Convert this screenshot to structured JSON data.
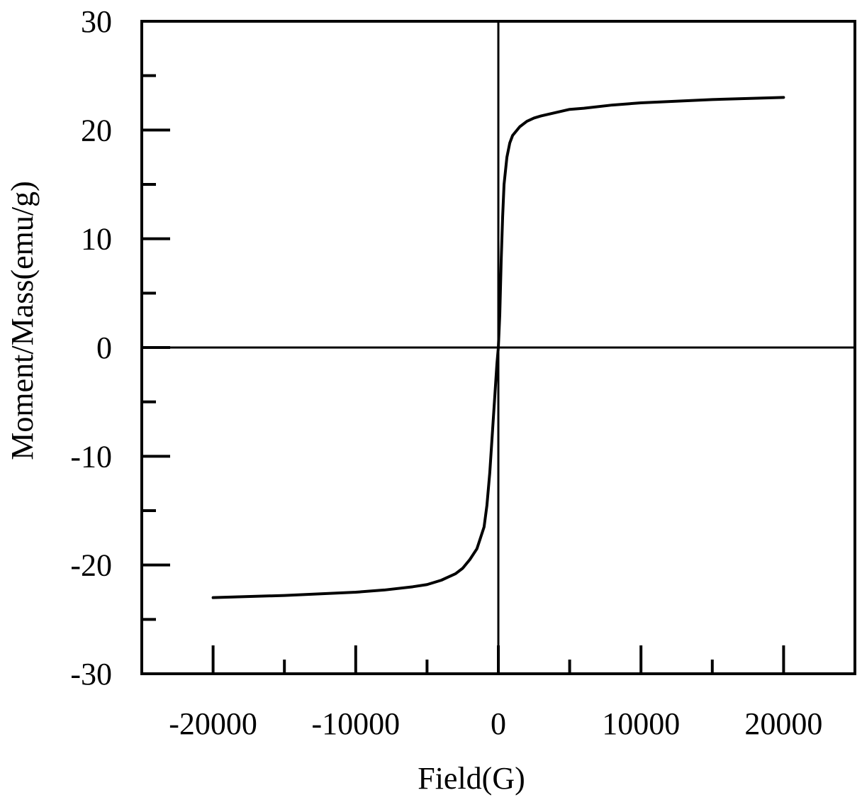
{
  "chart_data": {
    "type": "line",
    "title": "",
    "xlabel": "Field(G)",
    "ylabel": "Moment/Mass(emu/g)",
    "xlim": [
      -25000,
      25000
    ],
    "ylim": [
      -30,
      30
    ],
    "x_ticks": [
      -20000,
      -10000,
      0,
      10000,
      20000
    ],
    "x_tick_labels": [
      "-20000",
      "-10000",
      "0",
      "10000",
      "20000"
    ],
    "x_minor_ticks": [
      -15000,
      -5000,
      5000,
      15000
    ],
    "y_ticks": [
      -30,
      -20,
      -10,
      0,
      10,
      20,
      30
    ],
    "y_tick_labels": [
      "-30",
      "-20",
      "-10",
      "0",
      "10",
      "20",
      "30"
    ],
    "y_minor_ticks": [
      -25,
      -15,
      -5,
      5,
      15,
      25
    ],
    "zero_lines": true,
    "grid": false,
    "legend": "none",
    "color": "#000000",
    "series": [
      {
        "x": [
          -20000,
          -15000,
          -10000,
          -8000,
          -6000,
          -5000,
          -4000,
          -3000,
          -2500,
          -2000,
          -1500,
          -1000,
          -800,
          -600,
          -400,
          -300,
          -200,
          -100,
          0,
          100,
          200,
          300,
          400,
          600,
          800,
          1000,
          1500,
          2000,
          2500,
          3000,
          4000,
          5000,
          6000,
          8000,
          10000,
          15000,
          20000
        ],
        "y": [
          -23,
          -22.8,
          -22.5,
          -22.3,
          -22,
          -21.8,
          -21.4,
          -20.8,
          -20.3,
          -19.5,
          -18.5,
          -16.5,
          -14.5,
          -11.5,
          -7.5,
          -5.5,
          -3.5,
          -1.5,
          0,
          3,
          8,
          12,
          15,
          17.5,
          18.8,
          19.5,
          20.3,
          20.8,
          21.1,
          21.3,
          21.6,
          21.9,
          22,
          22.3,
          22.5,
          22.8,
          23
        ]
      }
    ]
  }
}
